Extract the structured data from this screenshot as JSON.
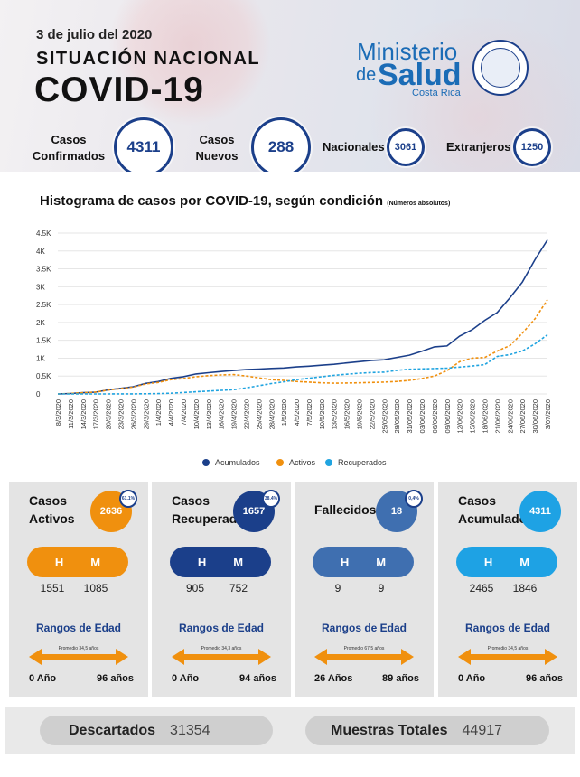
{
  "header": {
    "date": "3 de julio del 2020",
    "subtitle": "SITUACIÓN NACIONAL",
    "title": "COVID-19",
    "logo": {
      "line1": "Ministerio",
      "line2a": "de",
      "line2b": "Salud",
      "line3": "Costa Rica"
    }
  },
  "stats": {
    "confirmados": {
      "label1": "Casos",
      "label2": "Confirmados",
      "value": "4311"
    },
    "nuevos": {
      "label1": "Casos",
      "label2": "Nuevos",
      "value": "288"
    },
    "nacionales": {
      "label": "Nacionales",
      "value": "3061"
    },
    "extranjeros": {
      "label": "Extranjeros",
      "value": "1250"
    }
  },
  "chart_title": "Histograma de casos por COVID-19, según condición",
  "chart_subtitle": "(Números absolutos)",
  "colors": {
    "acumulados": "#1b3f8a",
    "activos": "#f0900e",
    "recuperados": "#20a4e0"
  },
  "chart_data": {
    "type": "line",
    "y_ticks": [
      "0",
      "0.5K",
      "1K",
      "1.5K",
      "2K",
      "2.5K",
      "3K",
      "3.5K",
      "4K",
      "4.5K"
    ],
    "ylim": [
      0,
      4500
    ],
    "x_tick_labels": [
      "8/3/2020",
      "11/3/2020",
      "14/3/2020",
      "17/3/2020",
      "20/3/2020",
      "23/3/2020",
      "26/3/2020",
      "29/3/2020",
      "1/4/2020",
      "4/4/2020",
      "7/4/2020",
      "10/4/2020",
      "13/4/2020",
      "16/4/2020",
      "19/4/2020",
      "22/4/2020",
      "25/4/2020",
      "28/4/2020",
      "1/5/2020",
      "4/5/2020",
      "7/5/2020",
      "10/5/2020",
      "13/5/2020",
      "16/5/2020",
      "19/5/2020",
      "22/5/2020",
      "25/05/2020",
      "28/05/2020",
      "31/05/2020",
      "03/06/2020",
      "06/06/2020",
      "09/06/2020",
      "12/06/2020",
      "15/06/2020",
      "18/06/2020",
      "21/06/2020",
      "24/06/2020",
      "27/06/2020",
      "30/06/2020",
      "3/07/2020"
    ],
    "series": [
      {
        "name": "Acumulados",
        "values": [
          1,
          13,
          35,
          50,
          113,
          158,
          201,
          295,
          347,
          435,
          483,
          558,
          595,
          626,
          655,
          681,
          695,
          713,
          725,
          755,
          776,
          804,
          830,
          866,
          903,
          939,
          956,
          1022,
          1084,
          1194,
          1318,
          1342,
          1617,
          1796,
          2058,
          2277,
          2684,
          3130,
          3753,
          4311
        ]
      },
      {
        "name": "Activos",
        "values": [
          1,
          13,
          35,
          50,
          108,
          150,
          193,
          280,
          320,
          400,
          430,
          480,
          510,
          530,
          540,
          500,
          450,
          400,
          380,
          350,
          330,
          310,
          300,
          305,
          310,
          320,
          330,
          350,
          380,
          430,
          500,
          650,
          900,
          1000,
          1020,
          1200,
          1350,
          1700,
          2100,
          2636
        ]
      },
      {
        "name": "Recuperados",
        "values": [
          0,
          0,
          0,
          0,
          0,
          2,
          3,
          5,
          10,
          20,
          40,
          60,
          80,
          100,
          120,
          170,
          230,
          290,
          340,
          400,
          440,
          480,
          520,
          550,
          580,
          600,
          610,
          660,
          690,
          700,
          710,
          720,
          750,
          780,
          820,
          1050,
          1100,
          1200,
          1400,
          1657
        ]
      }
    ],
    "legend_position": "bottom-center"
  },
  "cards": [
    {
      "title1": "Casos",
      "title2": "Activos",
      "value": "2636",
      "pct": "61.1%",
      "h_label": "H",
      "m_label": "M",
      "h": "1551",
      "m": "1085",
      "rango": "Rangos de Edad",
      "promedio": "Promedio 34,5 años",
      "min_age": "0 Año",
      "max_age": "96 años"
    },
    {
      "title1": "Casos",
      "title2": "Recuperados",
      "value": "1657",
      "pct": "38.4%",
      "h_label": "H",
      "m_label": "M",
      "h": "905",
      "m": "752",
      "rango": "Rangos de Edad",
      "promedio": "Promedio 34,3 años",
      "min_age": "0 Año",
      "max_age": "94 años"
    },
    {
      "title1": "Fallecidos",
      "title2": "",
      "value": "18",
      "pct": "0,4%",
      "h_label": "H",
      "m_label": "M",
      "h": "9",
      "m": "9",
      "rango": "Rangos de Edad",
      "promedio": "Promedio 67,5 años",
      "min_age": "26 Años",
      "max_age": "89 años"
    },
    {
      "title1": "Casos",
      "title2": "Acumulados",
      "value": "4311",
      "pct": "",
      "h_label": "H",
      "m_label": "M",
      "h": "2465",
      "m": "1846",
      "rango": "Rangos de Edad",
      "promedio": "Promedio 34,5 años",
      "min_age": "0 Año",
      "max_age": "96 años"
    }
  ],
  "card_colors": [
    {
      "bubble": "#f0900e",
      "pill": "#f0900e"
    },
    {
      "bubble": "#1b3f8a",
      "pill": "#1b3f8a"
    },
    {
      "bubble": "#3f6fb0",
      "pill": "#3f6fb0"
    },
    {
      "bubble": "#1ea2e4",
      "pill": "#1ea2e4"
    }
  ],
  "bottom": {
    "descartados_label": "Descartados",
    "descartados": "31354",
    "muestras_label": "Muestras Totales",
    "muestras": "44917"
  }
}
